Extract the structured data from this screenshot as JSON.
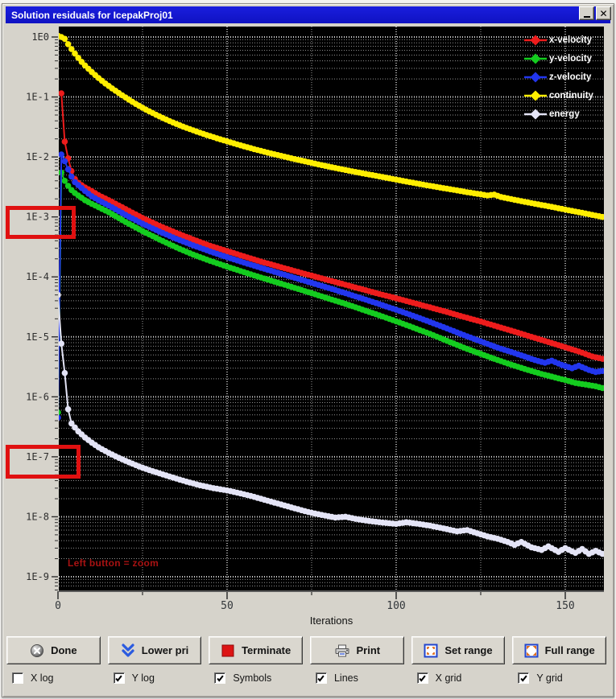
{
  "window": {
    "title": "Solution residuals for IcepakProj01"
  },
  "chart_data": {
    "type": "line",
    "title": "Solution residuals for IcepakProj01",
    "xlabel": "Iterations",
    "x_axis": {
      "min": 0,
      "max": 161,
      "major_ticks": [
        0,
        50,
        100,
        150
      ],
      "minor_ticks": [
        25,
        75,
        125
      ],
      "labels": [
        "0",
        "50",
        "100",
        "150"
      ]
    },
    "y_axis": {
      "scale": "log",
      "tick_exponents": [
        0,
        -1,
        -2,
        -3,
        -4,
        -5,
        -6,
        -7,
        -8,
        -9
      ],
      "tick_labels": [
        "1E0",
        "1E-1",
        "1E-2",
        "1E-3",
        "1E-4",
        "1E-5",
        "1E-6",
        "1E-7",
        "1E-8",
        "1E-9"
      ]
    },
    "grid": {
      "x": true,
      "y": true,
      "y_minor": true
    },
    "legend_position": "top-right",
    "annotation": {
      "text": "Left button = zoom",
      "color": "#a81212"
    },
    "highlight_boxes": [
      {
        "target_label": "1E-3"
      },
      {
        "target_label": "1E-7"
      }
    ],
    "series": [
      {
        "name": "x-velocity",
        "color": "#ee1c1c",
        "points": [
          [
            1,
            0.115
          ],
          [
            2,
            0.018
          ],
          [
            3,
            0.0095
          ],
          [
            4,
            0.0058
          ],
          [
            5,
            0.0043
          ],
          [
            6,
            0.0037
          ],
          [
            8,
            0.0031
          ],
          [
            10,
            0.0027
          ],
          [
            12,
            0.0023
          ],
          [
            15,
            0.0019
          ],
          [
            20,
            0.00135
          ],
          [
            25,
            0.00096
          ],
          [
            30,
            0.00071
          ],
          [
            35,
            0.00054
          ],
          [
            40,
            0.00042
          ],
          [
            45,
            0.00033
          ],
          [
            50,
            0.00027
          ],
          [
            55,
            0.00022
          ],
          [
            60,
            0.00018
          ],
          [
            65,
            0.00015
          ],
          [
            70,
            0.000125
          ],
          [
            75,
            0.000105
          ],
          [
            80,
            8.8e-05
          ],
          [
            85,
            7.4e-05
          ],
          [
            90,
            6.2e-05
          ],
          [
            95,
            5.2e-05
          ],
          [
            100,
            4.4e-05
          ],
          [
            105,
            3.7e-05
          ],
          [
            110,
            3.1e-05
          ],
          [
            115,
            2.6e-05
          ],
          [
            120,
            2.15e-05
          ],
          [
            125,
            1.8e-05
          ],
          [
            130,
            1.48e-05
          ],
          [
            135,
            1.22e-05
          ],
          [
            140,
            1e-05
          ],
          [
            145,
            8.2e-06
          ],
          [
            150,
            6.7e-06
          ],
          [
            154,
            5.7e-06
          ],
          [
            158,
            4.7e-06
          ],
          [
            161,
            4.3e-06
          ]
        ]
      },
      {
        "name": "y-velocity",
        "color": "#14cc1f",
        "points": [
          [
            0,
            5.5e-07
          ],
          [
            1,
            0.0055
          ],
          [
            2,
            0.004
          ],
          [
            3,
            0.0033
          ],
          [
            4,
            0.0028
          ],
          [
            5,
            0.0025
          ],
          [
            8,
            0.0019
          ],
          [
            10,
            0.00165
          ],
          [
            12,
            0.00145
          ],
          [
            15,
            0.0012
          ],
          [
            20,
            0.00082
          ],
          [
            25,
            0.00058
          ],
          [
            30,
            0.00042
          ],
          [
            35,
            0.00031
          ],
          [
            40,
            0.000235
          ],
          [
            45,
            0.000185
          ],
          [
            50,
            0.000148
          ],
          [
            55,
            0.00012
          ],
          [
            60,
            9.75e-05
          ],
          [
            65,
            8e-05
          ],
          [
            70,
            6.55e-05
          ],
          [
            75,
            5.35e-05
          ],
          [
            80,
            4.35e-05
          ],
          [
            85,
            3.55e-05
          ],
          [
            90,
            2.85e-05
          ],
          [
            95,
            2.28e-05
          ],
          [
            100,
            1.82e-05
          ],
          [
            105,
            1.43e-05
          ],
          [
            110,
            1.12e-05
          ],
          [
            115,
            8.6e-06
          ],
          [
            120,
            6.6e-06
          ],
          [
            125,
            5.2e-06
          ],
          [
            130,
            4.1e-06
          ],
          [
            135,
            3.3e-06
          ],
          [
            139,
            2.8e-06
          ],
          [
            143,
            2.4e-06
          ],
          [
            147,
            2.1e-06
          ],
          [
            150,
            1.9e-06
          ],
          [
            153,
            1.7e-06
          ],
          [
            156,
            1.6e-06
          ],
          [
            159,
            1.5e-06
          ],
          [
            161,
            1.4e-06
          ]
        ]
      },
      {
        "name": "z-velocity",
        "color": "#2236ee",
        "points": [
          [
            0,
            4.5e-07
          ],
          [
            1,
            0.011
          ],
          [
            2,
            0.0085
          ],
          [
            3,
            0.0062
          ],
          [
            4,
            0.0047
          ],
          [
            5,
            0.0038
          ],
          [
            8,
            0.0027
          ],
          [
            10,
            0.0022
          ],
          [
            12,
            0.0019
          ],
          [
            15,
            0.00155
          ],
          [
            20,
            0.00108
          ],
          [
            25,
            0.00077
          ],
          [
            30,
            0.00057
          ],
          [
            35,
            0.00043
          ],
          [
            40,
            0.000335
          ],
          [
            45,
            0.000265
          ],
          [
            50,
            0.000213
          ],
          [
            55,
            0.000173
          ],
          [
            60,
            0.000142
          ],
          [
            65,
            0.000117
          ],
          [
            70,
            9.65e-05
          ],
          [
            75,
            7.95e-05
          ],
          [
            80,
            6.55e-05
          ],
          [
            85,
            5.35e-05
          ],
          [
            90,
            4.35e-05
          ],
          [
            95,
            3.52e-05
          ],
          [
            100,
            2.83e-05
          ],
          [
            105,
            2.25e-05
          ],
          [
            110,
            1.77e-05
          ],
          [
            115,
            1.38e-05
          ],
          [
            120,
            1.07e-05
          ],
          [
            125,
            8.4e-06
          ],
          [
            130,
            6.6e-06
          ],
          [
            134,
            5.6e-06
          ],
          [
            138,
            4.7e-06
          ],
          [
            141,
            4.1e-06
          ],
          [
            144,
            3.7e-06
          ],
          [
            146,
            4e-06
          ],
          [
            149,
            3.4e-06
          ],
          [
            152,
            3e-06
          ],
          [
            154,
            3.3e-06
          ],
          [
            157,
            2.8e-06
          ],
          [
            159,
            2.6e-06
          ],
          [
            161,
            2.7e-06
          ]
        ]
      },
      {
        "name": "continuity",
        "color": "#ffee00",
        "points": [
          [
            0,
            1.05
          ],
          [
            1,
            1.0
          ],
          [
            2,
            0.93
          ],
          [
            3,
            0.76
          ],
          [
            4,
            0.63
          ],
          [
            5,
            0.53
          ],
          [
            6,
            0.45
          ],
          [
            7,
            0.385
          ],
          [
            8,
            0.335
          ],
          [
            10,
            0.26
          ],
          [
            12,
            0.207
          ],
          [
            14,
            0.168
          ],
          [
            16,
            0.139
          ],
          [
            18,
            0.116
          ],
          [
            20,
            0.098
          ],
          [
            23,
            0.0765
          ],
          [
            26,
            0.0615
          ],
          [
            29,
            0.0505
          ],
          [
            32,
            0.042
          ],
          [
            35,
            0.0355
          ],
          [
            38,
            0.0305
          ],
          [
            41,
            0.0265
          ],
          [
            44,
            0.0232
          ],
          [
            47,
            0.0205
          ],
          [
            50,
            0.0182
          ],
          [
            54,
            0.0156
          ],
          [
            58,
            0.0135
          ],
          [
            62,
            0.0118
          ],
          [
            66,
            0.0104
          ],
          [
            70,
            0.0092
          ],
          [
            74,
            0.0082
          ],
          [
            78,
            0.0073
          ],
          [
            82,
            0.00655
          ],
          [
            86,
            0.0059
          ],
          [
            90,
            0.00535
          ],
          [
            94,
            0.00485
          ],
          [
            98,
            0.0044
          ],
          [
            102,
            0.00398
          ],
          [
            106,
            0.00362
          ],
          [
            110,
            0.0033
          ],
          [
            114,
            0.00302
          ],
          [
            118,
            0.00277
          ],
          [
            121,
            0.00258
          ],
          [
            124,
            0.00243
          ],
          [
            127,
            0.00228
          ],
          [
            129,
            0.00236
          ],
          [
            131,
            0.00215
          ],
          [
            134,
            0.00198
          ],
          [
            137,
            0.00183
          ],
          [
            140,
            0.0017
          ],
          [
            143,
            0.00158
          ],
          [
            146,
            0.00147
          ],
          [
            149,
            0.00136
          ],
          [
            152,
            0.00126
          ],
          [
            155,
            0.00117
          ],
          [
            158,
            0.00108
          ],
          [
            161,
            0.001
          ]
        ]
      },
      {
        "name": "energy",
        "color": "#e4e4f6",
        "points": [
          [
            0,
            5e-05
          ],
          [
            1,
            7.7e-06
          ],
          [
            2,
            2.5e-06
          ],
          [
            3,
            6.2e-07
          ],
          [
            4,
            3.6e-07
          ],
          [
            6,
            2.65e-07
          ],
          [
            8,
            2.1e-07
          ],
          [
            10,
            1.72e-07
          ],
          [
            12,
            1.44e-07
          ],
          [
            15,
            1.16e-07
          ],
          [
            18,
            9.6e-08
          ],
          [
            21,
            8.1e-08
          ],
          [
            24,
            6.9e-08
          ],
          [
            27,
            6e-08
          ],
          [
            30,
            5.3e-08
          ],
          [
            34,
            4.5e-08
          ],
          [
            38,
            3.85e-08
          ],
          [
            42,
            3.35e-08
          ],
          [
            46,
            3e-08
          ],
          [
            50,
            2.75e-08
          ],
          [
            54,
            2.45e-08
          ],
          [
            58,
            2.15e-08
          ],
          [
            62,
            1.85e-08
          ],
          [
            66,
            1.6e-08
          ],
          [
            70,
            1.38e-08
          ],
          [
            74,
            1.2e-08
          ],
          [
            78,
            1.07e-08
          ],
          [
            82,
            9.7e-09
          ],
          [
            85,
            1e-08
          ],
          [
            88,
            9.2e-09
          ],
          [
            92,
            8.5e-09
          ],
          [
            96,
            8e-09
          ],
          [
            100,
            7.6e-09
          ],
          [
            103,
            8.1e-09
          ],
          [
            106,
            7.7e-09
          ],
          [
            110,
            7.1e-09
          ],
          [
            114,
            6.4e-09
          ],
          [
            118,
            5.7e-09
          ],
          [
            121,
            6e-09
          ],
          [
            124,
            5.3e-09
          ],
          [
            127,
            4.7e-09
          ],
          [
            130,
            4.3e-09
          ],
          [
            133,
            3.8e-09
          ],
          [
            135,
            3.4e-09
          ],
          [
            137,
            3.8e-09
          ],
          [
            140,
            3.1e-09
          ],
          [
            143,
            2.8e-09
          ],
          [
            145,
            3.2e-09
          ],
          [
            148,
            2.6e-09
          ],
          [
            150,
            3e-09
          ],
          [
            153,
            2.5e-09
          ],
          [
            155,
            2.9e-09
          ],
          [
            157,
            2.4e-09
          ],
          [
            159,
            2.7e-09
          ],
          [
            161,
            2.4e-09
          ]
        ]
      }
    ]
  },
  "toolbar": {
    "buttons": [
      {
        "label": "Done",
        "icon": "cancel-circle-icon"
      },
      {
        "label": "Lower pri",
        "icon": "double-chevron-down-icon"
      },
      {
        "label": "Terminate",
        "icon": "red-square-icon"
      },
      {
        "label": "Print",
        "icon": "printer-icon"
      },
      {
        "label": "Set range",
        "icon": "set-range-icon"
      },
      {
        "label": "Full range",
        "icon": "full-range-icon"
      }
    ]
  },
  "checkboxes": [
    {
      "label": "X log",
      "checked": false
    },
    {
      "label": "Y log",
      "checked": true
    },
    {
      "label": "Symbols",
      "checked": true
    },
    {
      "label": "Lines",
      "checked": true
    },
    {
      "label": "X grid",
      "checked": true
    },
    {
      "label": "Y grid",
      "checked": true
    }
  ]
}
